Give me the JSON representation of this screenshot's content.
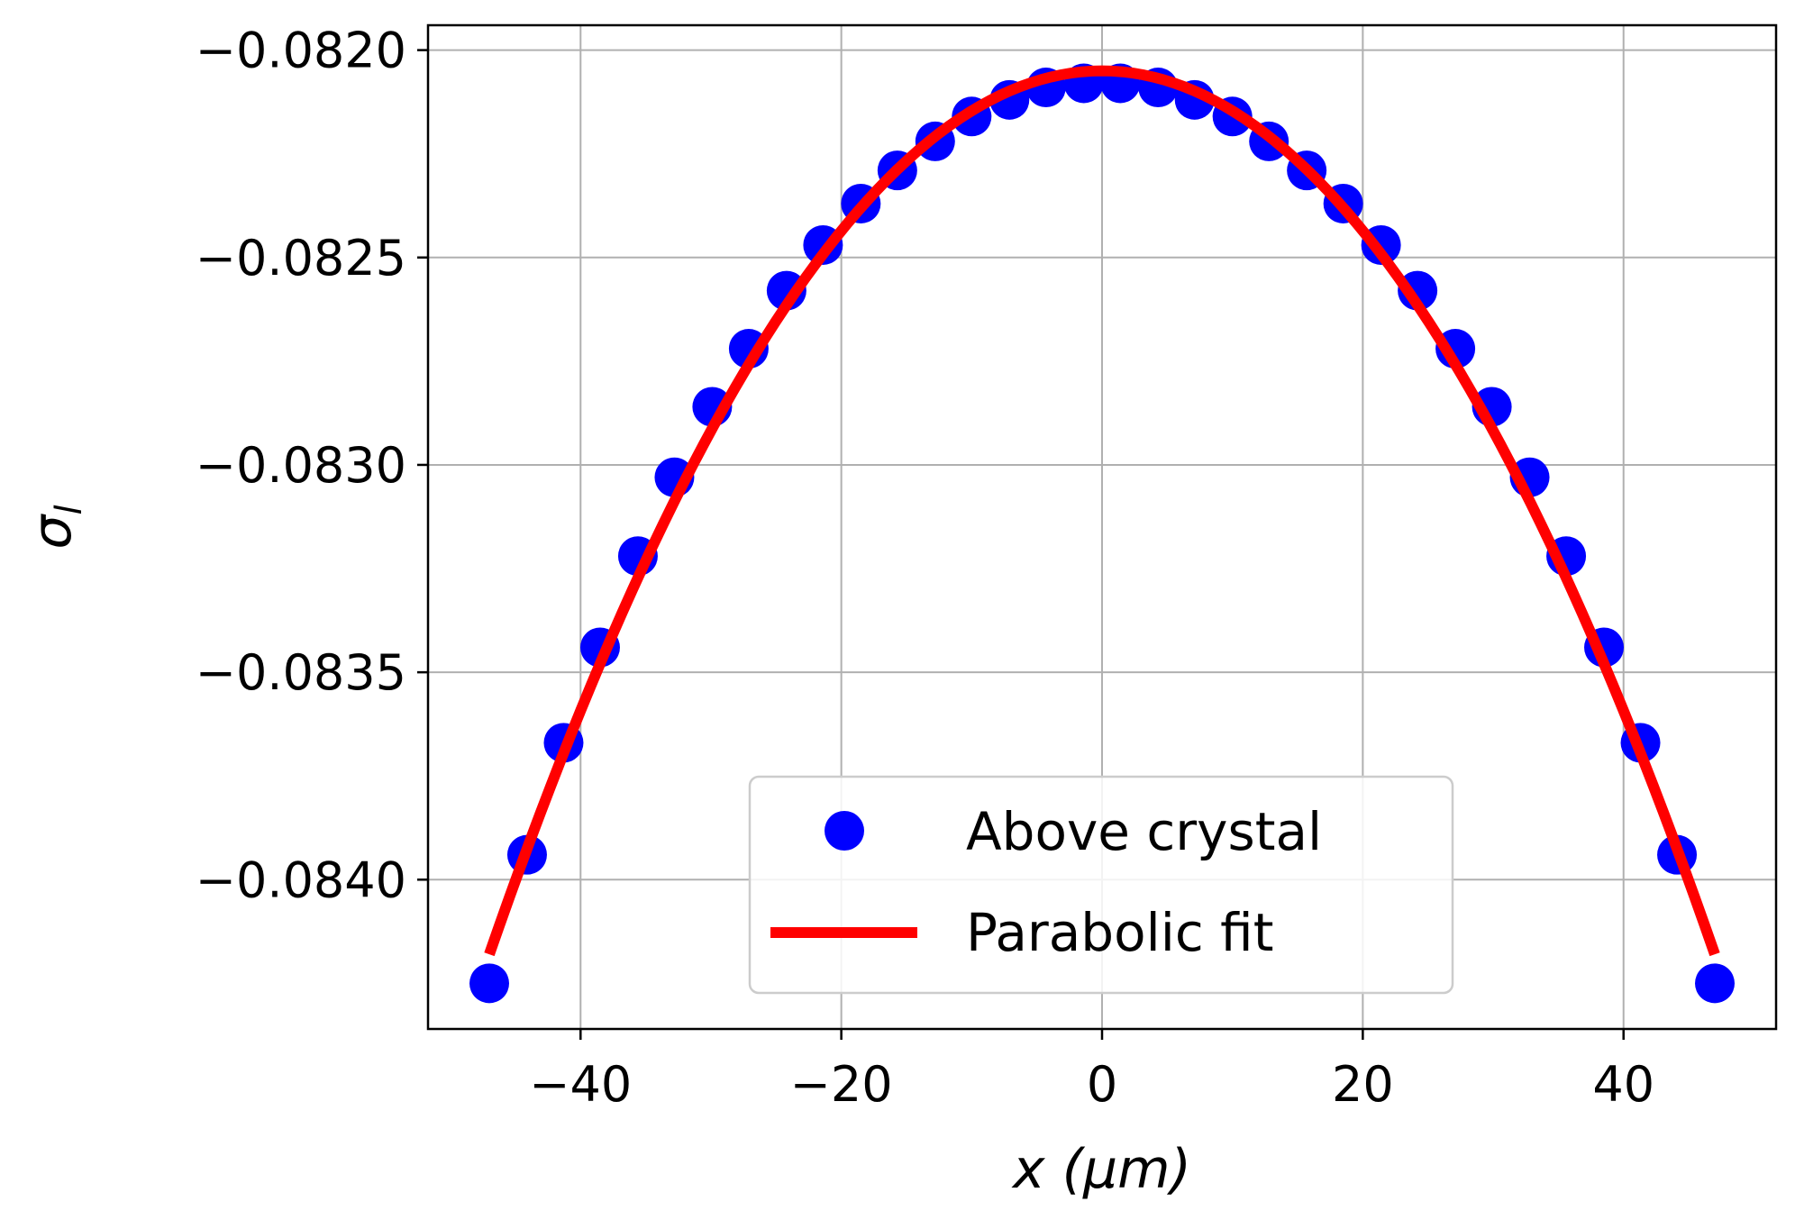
{
  "chart_data": {
    "type": "scatter",
    "title": "",
    "xlabel": "x (μm)",
    "ylabel": "σ_l",
    "xlim": [
      -51.7,
      51.7
    ],
    "ylim": [
      -0.08436,
      -0.08194
    ],
    "xticks": [
      -40,
      -20,
      0,
      20,
      40
    ],
    "xtick_labels": [
      "−40",
      "−20",
      "0",
      "20",
      "40"
    ],
    "yticks": [
      -0.082,
      -0.0825,
      -0.083,
      -0.0835,
      -0.084
    ],
    "ytick_labels": [
      "−0.0820",
      "−0.0825",
      "−0.0830",
      "−0.0835",
      "−0.0840"
    ],
    "grid": true,
    "legend_position": "lower center",
    "series": [
      {
        "name": "Above crystal",
        "kind": "scatter",
        "color": "#0000ff",
        "x": [
          -47.0,
          -44.1,
          -41.3,
          -38.5,
          -35.6,
          -32.8,
          -29.9,
          -27.1,
          -24.2,
          -21.4,
          -18.5,
          -15.7,
          -12.8,
          -10.0,
          -7.1,
          -4.3,
          -1.4,
          1.4,
          4.3,
          7.1,
          10.0,
          12.8,
          15.7,
          18.5,
          21.4,
          24.2,
          27.1,
          29.9,
          32.8,
          35.6,
          38.5,
          41.3,
          44.1,
          47.0
        ],
        "y": [
          -0.08425,
          -0.08394,
          -0.08367,
          -0.08344,
          -0.08322,
          -0.08303,
          -0.08286,
          -0.08272,
          -0.08258,
          -0.08247,
          -0.08237,
          -0.08229,
          -0.08222,
          -0.08216,
          -0.08212,
          -0.08209,
          -0.08208,
          -0.08208,
          -0.08209,
          -0.08212,
          -0.08216,
          -0.08222,
          -0.08229,
          -0.08237,
          -0.08247,
          -0.08258,
          -0.08272,
          -0.08286,
          -0.08303,
          -0.08322,
          -0.08344,
          -0.08367,
          -0.08394,
          -0.08425
        ]
      },
      {
        "name": "Parabolic fit",
        "kind": "line",
        "color": "#ff0000",
        "vertex_x": 0,
        "vertex_y": -0.08205,
        "x_range": [
          -47.0,
          47.0
        ],
        "y_at_ends": -0.08418
      }
    ]
  }
}
